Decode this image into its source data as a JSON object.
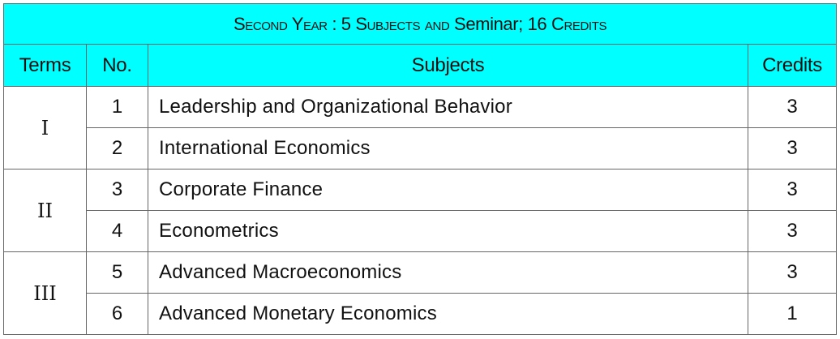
{
  "table": {
    "title_prefix": "Second Year : 5 Subjects and ",
    "title_mid": "Seminar",
    "title_suffix": "; 16 Credits",
    "headers": {
      "terms": "Terms",
      "no": "No.",
      "subjects": "Subjects",
      "credits": "Credits"
    },
    "terms": [
      "I",
      "II",
      "III"
    ],
    "rows": [
      {
        "no": "1",
        "subject": "Leadership and Organizational Behavior",
        "credits": "3"
      },
      {
        "no": "2",
        "subject": "International Economics",
        "credits": "3"
      },
      {
        "no": "3",
        "subject": "Corporate Finance",
        "credits": "3"
      },
      {
        "no": "4",
        "subject": "Econometrics",
        "credits": "3"
      },
      {
        "no": "5",
        "subject": "Advanced Macroeconomics",
        "credits": "3"
      },
      {
        "no": "6",
        "subject": "Advanced Monetary Economics",
        "credits": "1"
      }
    ]
  },
  "colors": {
    "header_bg": "#00ffff",
    "border": "#666666"
  }
}
